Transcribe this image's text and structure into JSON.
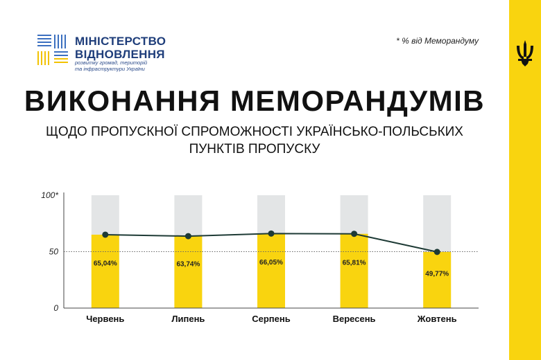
{
  "branding": {
    "ministry_line1": "МІНІСТЕРСТВО",
    "ministry_line2": "ВІДНОВЛЕННЯ",
    "ministry_sub1": "розвитку громад, територій",
    "ministry_sub2": "та інфраструктури України"
  },
  "footnote": "* % від Меморандуму",
  "colors": {
    "yellow": "#f9d40f",
    "gray": "#e3e5e6",
    "line": "#1d3a35",
    "navy": "#1e3d7a"
  },
  "chart_data": {
    "type": "bar",
    "title": "ВИКОНАННЯ МЕМОРАНДУМІВ",
    "subtitle_line1": "ЩОДО ПРОПУСКНОЇ СПРОМОЖНОСТІ УКРАЇНСЬКО-ПОЛЬСЬКИХ",
    "subtitle_line2": "ПУНКТІВ ПРОПУСКУ",
    "categories": [
      "Червень",
      "Липень",
      "Серпень",
      "Вересень",
      "Жовтень"
    ],
    "values": [
      65.04,
      63.74,
      66.05,
      65.81,
      49.77
    ],
    "value_labels": [
      "65,04%",
      "63,74%",
      "66,05%",
      "65,81%",
      "49,77%"
    ],
    "ylim": [
      0,
      100
    ],
    "yticks": [
      0,
      50,
      100
    ],
    "ytick_labels": [
      "0",
      "50",
      "100*"
    ],
    "line_overlay": true,
    "background_bars_to": 100,
    "reference_line": 50
  }
}
